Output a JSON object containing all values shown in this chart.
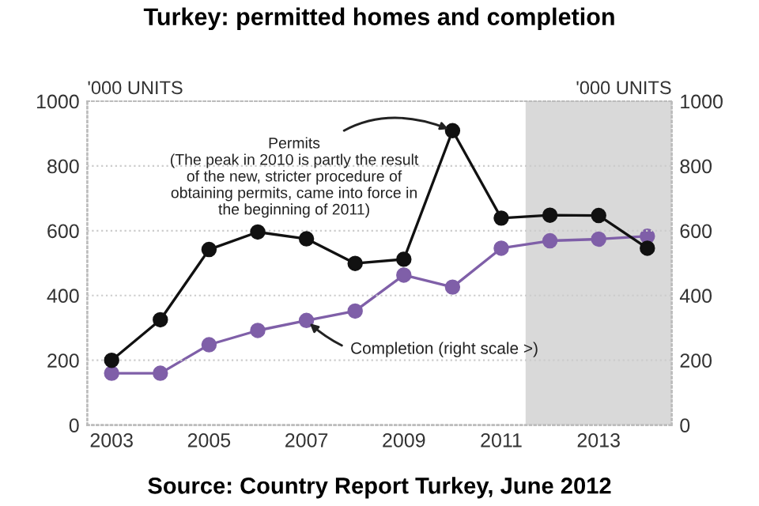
{
  "chart_data": {
    "type": "line",
    "title": "Turkey: permitted homes and completion",
    "ylabel": "'000 UNITS",
    "y2label": "'000 UNITS",
    "x": [
      2003,
      2004,
      2005,
      2006,
      2007,
      2008,
      2009,
      2010,
      2011,
      2012,
      2013,
      2014
    ],
    "series": [
      {
        "color": "#111111",
        "values": [
          200,
          325,
          542,
          596,
          575,
          499,
          512,
          909,
          639,
          648,
          647,
          546
        ]
      },
      {
        "color": "#7f5fa8",
        "axis": "y2",
        "values": [
          160,
          160,
          248,
          292,
          323,
          352,
          463,
          426,
          546,
          569,
          574,
          583
        ]
      }
    ],
    "xlim": [
      2002.5,
      2014.5
    ],
    "xticks": [
      2003,
      2005,
      2007,
      2009,
      2011,
      2013
    ],
    "ylim": [
      0,
      1000
    ],
    "yticks": [
      0,
      200,
      400,
      600,
      800,
      1000
    ],
    "y2lim": [
      0,
      1000
    ],
    "y2ticks": [
      0,
      200,
      400,
      600,
      800,
      1000
    ],
    "bands": [
      {
        "axis": "x",
        "from": 2011.5,
        "to": 2014.5,
        "color": "#d9d9d9"
      }
    ],
    "annotations": [
      {
        "text": "Permits\n(The peak in 2010 is partly the result\nof the new, stricter procedure of\nobtaining permits, came into force in\nthe beginning of 2011)",
        "x": 2010,
        "y": 909
      },
      {
        "text": "Completion (right scale >)",
        "x": 2007,
        "y": 323
      },
      "Source: Country Report Turkey, June 2012"
    ],
    "marker": "circle",
    "line_style": "solid",
    "grid": "y",
    "legend": false
  }
}
